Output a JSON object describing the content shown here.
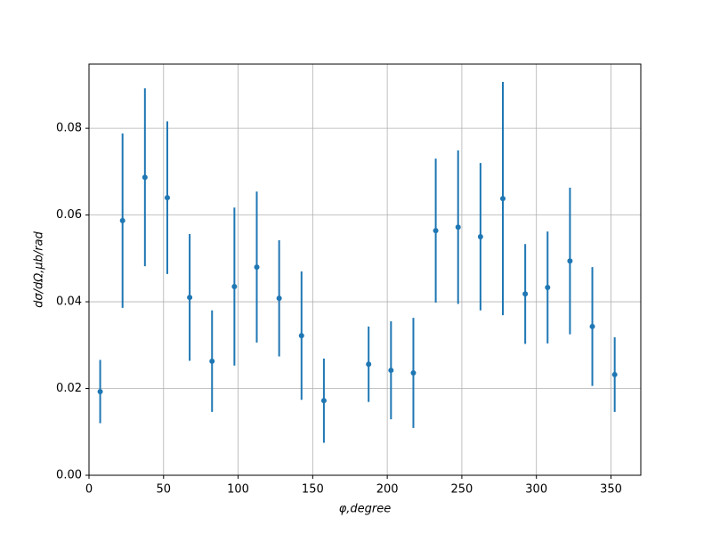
{
  "chart_data": {
    "type": "errorbar",
    "xlabel": "φ,degree",
    "ylabel": "dσ/dΩ,μb/rad",
    "x": [
      7.5,
      22.5,
      37.5,
      52.5,
      67.5,
      82.5,
      97.5,
      112.5,
      127.5,
      142.5,
      157.5,
      187.5,
      202.5,
      217.5,
      232.5,
      247.5,
      262.5,
      277.5,
      292.5,
      307.5,
      322.5,
      337.5,
      352.5
    ],
    "values": [
      0.0193,
      0.0587,
      0.0687,
      0.064,
      0.041,
      0.0263,
      0.0435,
      0.048,
      0.0408,
      0.0322,
      0.0172,
      0.0256,
      0.0242,
      0.0236,
      0.0564,
      0.0572,
      0.055,
      0.0638,
      0.0418,
      0.0433,
      0.0494,
      0.0343,
      0.0232
    ],
    "errors": [
      0.0073,
      0.0201,
      0.0205,
      0.0176,
      0.0146,
      0.0117,
      0.0182,
      0.0174,
      0.0134,
      0.0148,
      0.0097,
      0.0087,
      0.0113,
      0.0127,
      0.0166,
      0.0177,
      0.017,
      0.0269,
      0.0115,
      0.0129,
      0.0169,
      0.0137,
      0.0086
    ],
    "color": "#1f77b4",
    "xlim": [
      0,
      370
    ],
    "xticks": [
      0,
      50,
      100,
      150,
      200,
      250,
      300,
      350
    ],
    "ylim": [
      0,
      0.0948
    ],
    "yticks": [
      {
        "value": 0,
        "label": "0.00"
      },
      {
        "value": 0.02,
        "label": "0.02"
      },
      {
        "value": 0.04,
        "label": "0.04"
      },
      {
        "value": 0.06,
        "label": "0.06"
      },
      {
        "value": 0.08,
        "label": "0.08"
      }
    ],
    "grid": true
  }
}
